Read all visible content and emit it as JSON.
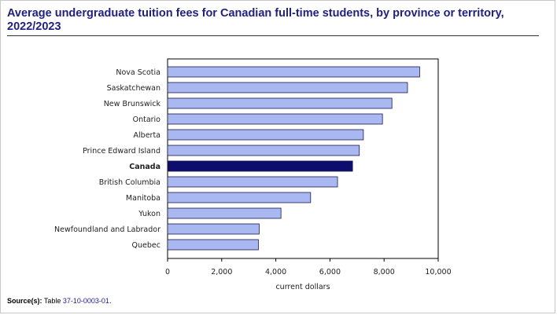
{
  "header": {
    "title": "Average undergraduate tuition fees for Canadian full-time students, by province or territory, 2022/2023"
  },
  "source": {
    "label": "Source(s):",
    "prefix": "Table",
    "link_text": "37-10-0003-01",
    "suffix": "."
  },
  "colors": {
    "bar": "#aab8f2",
    "highlight": "#0d0d6e",
    "bar_stroke": "#1a1a4a",
    "title": "#20208a"
  },
  "chart_data": {
    "type": "bar",
    "orientation": "horizontal",
    "categories": [
      "Nova Scotia",
      "Saskatchewan",
      "New Brunswick",
      "Ontario",
      "Alberta",
      "Prince Edward Island",
      "Canada",
      "British Columbia",
      "Manitoba",
      "Yukon",
      "Newfoundland and Labrador",
      "Quebec"
    ],
    "values": [
      9315,
      8865,
      8290,
      7940,
      7235,
      7085,
      6835,
      6280,
      5285,
      4190,
      3385,
      3355
    ],
    "highlight": "Canada",
    "xlabel": "current dollars",
    "xlim": [
      0,
      10000
    ],
    "xticks": [
      0,
      2000,
      4000,
      6000,
      8000,
      10000
    ],
    "xtick_labels": [
      "0",
      "2,000",
      "4,000",
      "6,000",
      "8,000",
      "10,000"
    ],
    "grid": false,
    "legend": "none"
  }
}
